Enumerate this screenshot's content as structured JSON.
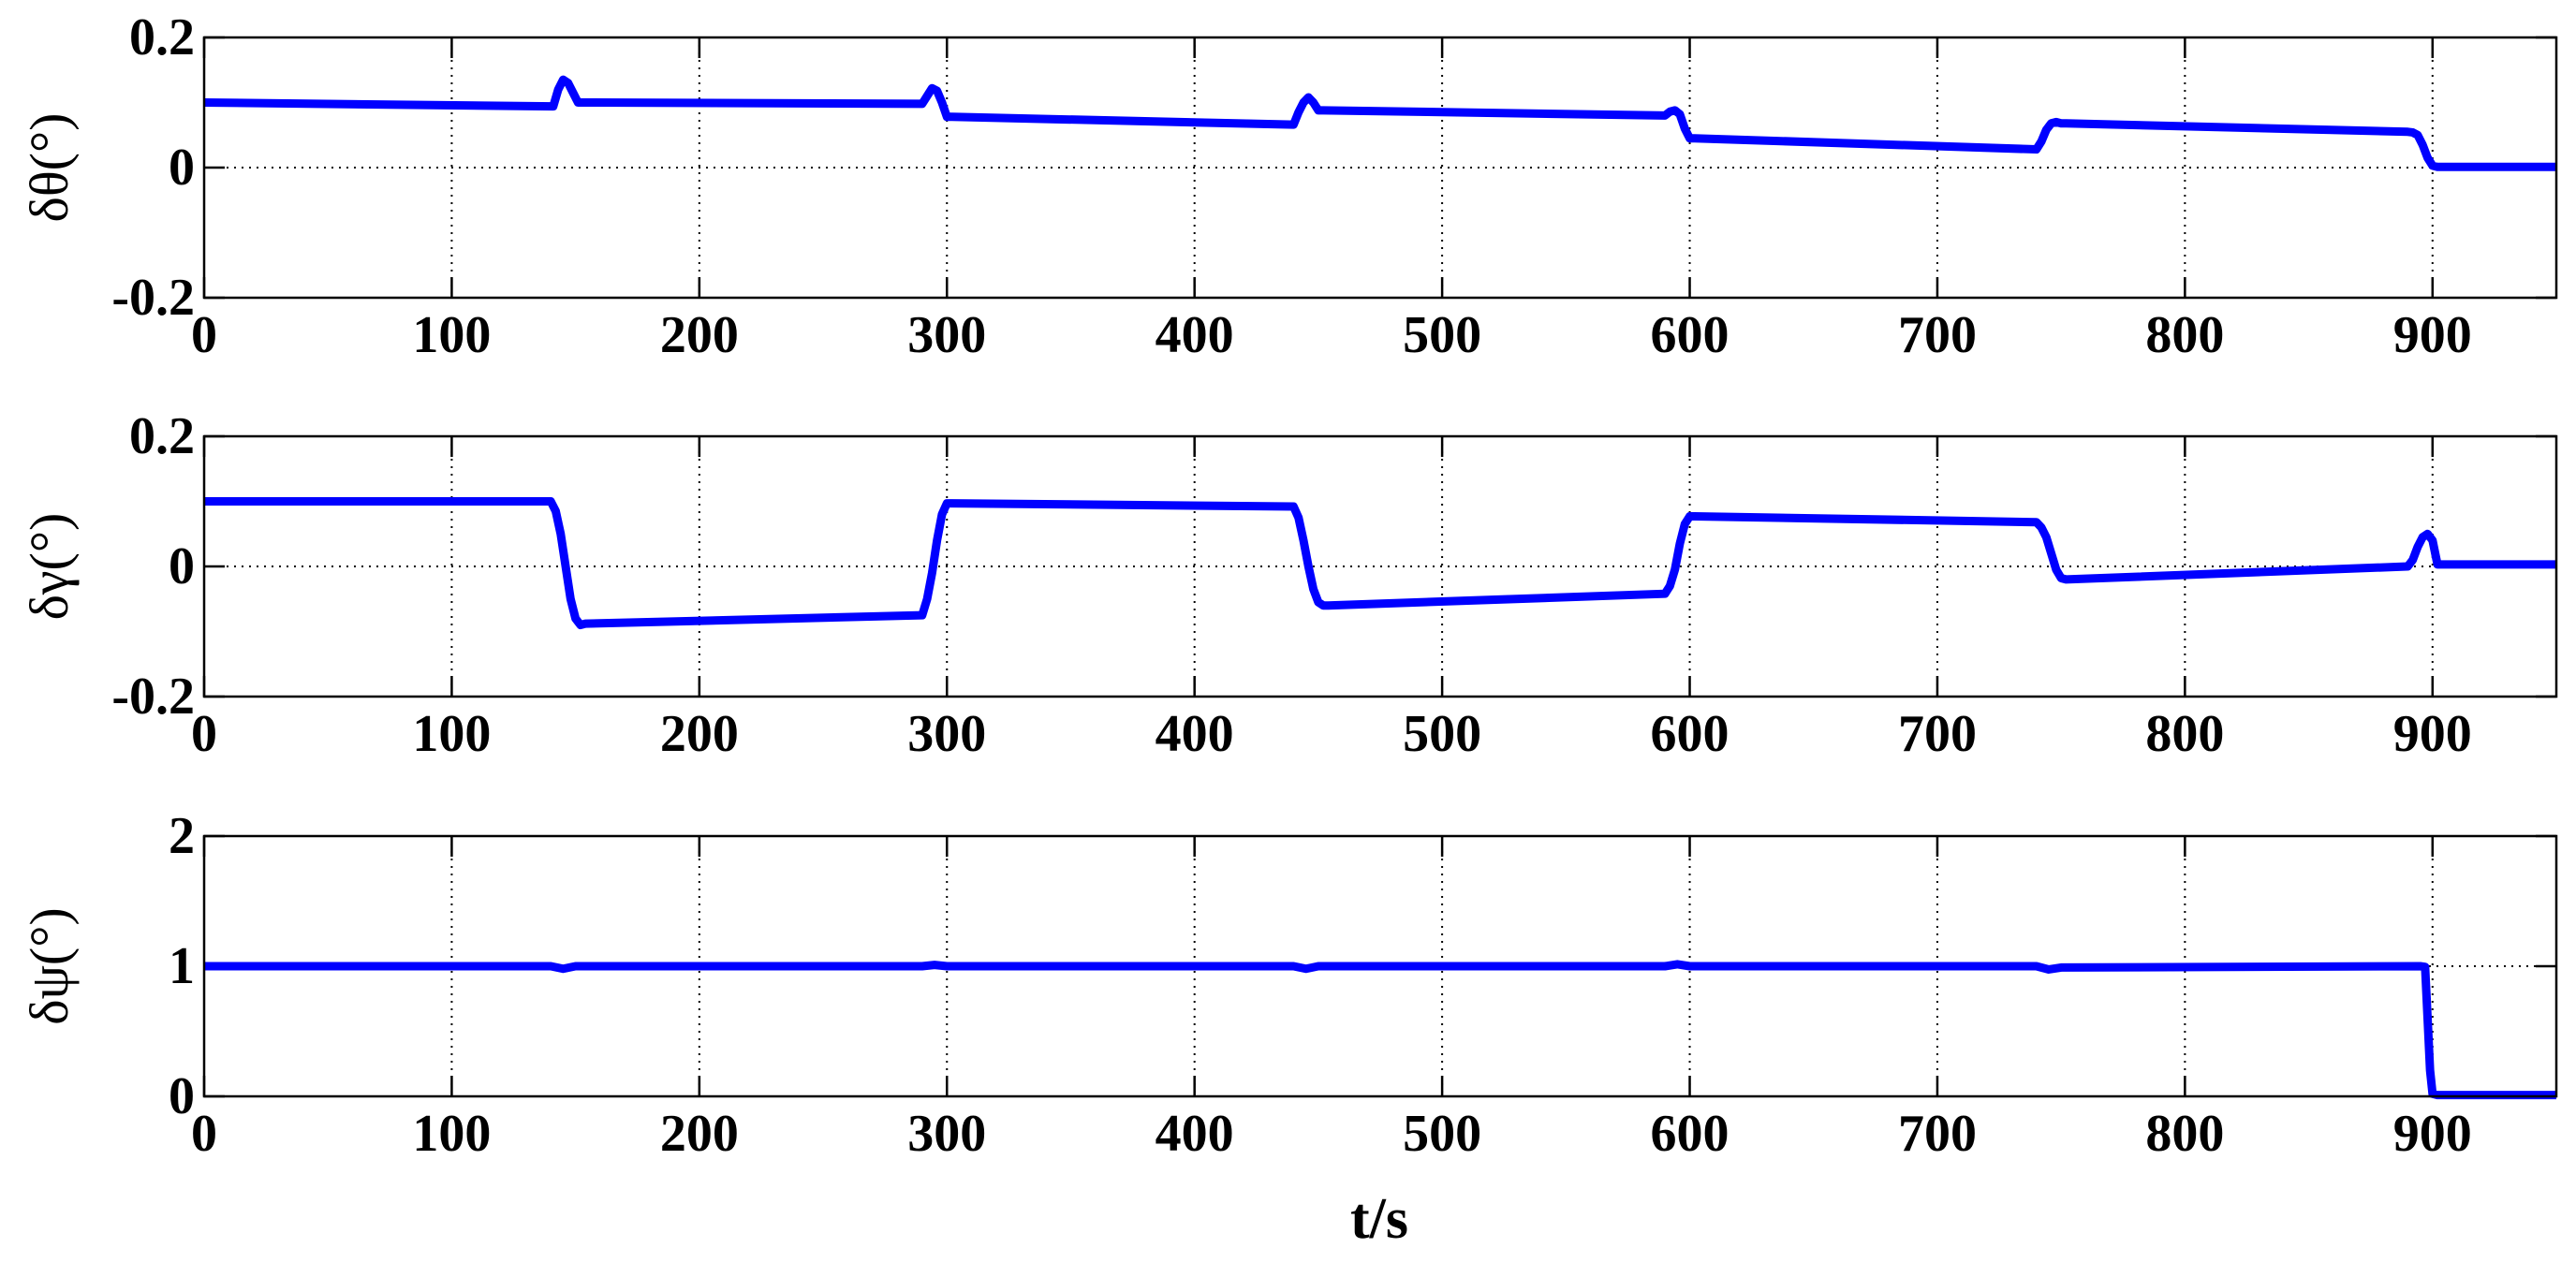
{
  "figure": {
    "background": "#ffffff",
    "line_color": "#0000ff",
    "grid_style": "dotted",
    "grid_color": "#000000",
    "xlabel": "t/s"
  },
  "chart_data": [
    {
      "type": "line",
      "ylabel": "δθ(°)",
      "xlim": [
        0,
        950
      ],
      "ylim": [
        -0.2,
        0.2
      ],
      "xticks": [
        0,
        100,
        200,
        300,
        400,
        500,
        600,
        700,
        800,
        900
      ],
      "xtick_labels": [
        "0",
        "100",
        "200",
        "300",
        "400",
        "500",
        "600",
        "700",
        "800",
        "900"
      ],
      "yticks": [
        -0.2,
        0,
        0.2
      ],
      "ytick_labels": [
        "-0.2",
        "0",
        "0.2"
      ],
      "grid": true,
      "series": [
        {
          "color": "#0000ff",
          "x": [
            0,
            141,
            143,
            145,
            147,
            149,
            151,
            153,
            290,
            292,
            294,
            296,
            298,
            300,
            302,
            440,
            442,
            444,
            446,
            448,
            450,
            452,
            590,
            592,
            594,
            596,
            598,
            600,
            602,
            740,
            742,
            744,
            746,
            748,
            750,
            752,
            890,
            892,
            894,
            896,
            898,
            900,
            902,
            950
          ],
          "y": [
            0.1,
            0.094,
            0.12,
            0.135,
            0.13,
            0.115,
            0.1,
            0.1,
            0.098,
            0.11,
            0.122,
            0.118,
            0.1,
            0.078,
            0.078,
            0.066,
            0.085,
            0.1,
            0.108,
            0.1,
            0.088,
            0.088,
            0.08,
            0.086,
            0.088,
            0.082,
            0.06,
            0.045,
            0.045,
            0.028,
            0.04,
            0.058,
            0.068,
            0.07,
            0.068,
            0.068,
            0.055,
            0.054,
            0.05,
            0.035,
            0.015,
            0.003,
            0.001,
            0.001
          ]
        }
      ]
    },
    {
      "type": "line",
      "ylabel": "δγ(°)",
      "xlim": [
        0,
        950
      ],
      "ylim": [
        -0.2,
        0.2
      ],
      "xticks": [
        0,
        100,
        200,
        300,
        400,
        500,
        600,
        700,
        800,
        900
      ],
      "xtick_labels": [
        "0",
        "100",
        "200",
        "300",
        "400",
        "500",
        "600",
        "700",
        "800",
        "900"
      ],
      "yticks": [
        -0.2,
        0,
        0.2
      ],
      "ytick_labels": [
        "-0.2",
        "0",
        "0.2"
      ],
      "grid": true,
      "series": [
        {
          "color": "#0000ff",
          "x": [
            0,
            140,
            142,
            144,
            146,
            148,
            150,
            152,
            154,
            290,
            292,
            294,
            296,
            298,
            300,
            302,
            440,
            442,
            444,
            446,
            448,
            450,
            452,
            454,
            590,
            592,
            594,
            596,
            598,
            600,
            602,
            740,
            742,
            744,
            746,
            748,
            750,
            752,
            890,
            892,
            894,
            896,
            898,
            900,
            902,
            950
          ],
          "y": [
            0.1,
            0.1,
            0.085,
            0.05,
            0.0,
            -0.05,
            -0.08,
            -0.09,
            -0.088,
            -0.075,
            -0.05,
            -0.01,
            0.04,
            0.08,
            0.097,
            0.097,
            0.092,
            0.075,
            0.04,
            0.0,
            -0.035,
            -0.055,
            -0.06,
            -0.06,
            -0.042,
            -0.03,
            -0.005,
            0.035,
            0.065,
            0.077,
            0.077,
            0.068,
            0.06,
            0.045,
            0.02,
            -0.005,
            -0.018,
            -0.02,
            0.0,
            0.01,
            0.03,
            0.045,
            0.05,
            0.04,
            0.003,
            0.003
          ]
        }
      ]
    },
    {
      "type": "line",
      "ylabel": "δψ(°)",
      "xlim": [
        0,
        950
      ],
      "ylim": [
        0,
        2
      ],
      "xticks": [
        0,
        100,
        200,
        300,
        400,
        500,
        600,
        700,
        800,
        900
      ],
      "xtick_labels": [
        "0",
        "100",
        "200",
        "300",
        "400",
        "500",
        "600",
        "700",
        "800",
        "900"
      ],
      "yticks": [
        0,
        1,
        2
      ],
      "ytick_labels": [
        "0",
        "1",
        "2"
      ],
      "grid": true,
      "series": [
        {
          "color": "#0000ff",
          "x": [
            0,
            140,
            145,
            150,
            290,
            295,
            300,
            440,
            445,
            450,
            590,
            595,
            600,
            740,
            745,
            750,
            895,
            897,
            898,
            899,
            900,
            902,
            950
          ],
          "y": [
            1.0,
            1.0,
            0.98,
            1.0,
            1.0,
            1.01,
            1.0,
            1.0,
            0.98,
            1.0,
            1.0,
            1.015,
            1.0,
            1.0,
            0.975,
            0.99,
            1.0,
            0.995,
            0.6,
            0.2,
            0.02,
            0.01,
            0.01
          ]
        }
      ]
    }
  ]
}
